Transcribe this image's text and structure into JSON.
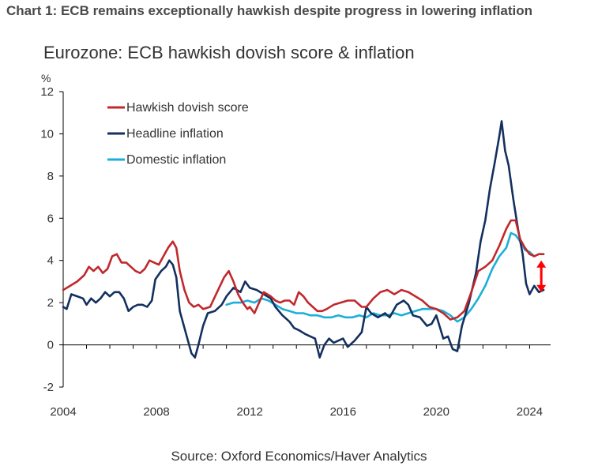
{
  "header": {
    "title": "Chart 1: ECB remains exceptionally hawkish despite progress in lowering inflation"
  },
  "source": "Source: Oxford Economics/Haver Analytics",
  "colors": {
    "hawkish": "#C0282D",
    "headline": "#13305F",
    "domestic": "#1BAFD8",
    "arrow": "#FF0000",
    "axis": "#000000",
    "text": "#333333"
  },
  "chart_data": {
    "type": "line",
    "title": "Eurozone: ECB hawkish dovish score & inflation",
    "ylabel": "%",
    "xlabel": "",
    "xlim": [
      2004,
      2024.9
    ],
    "ylim": [
      -2,
      12
    ],
    "yticks": [
      -2,
      0,
      2,
      4,
      6,
      8,
      10,
      12
    ],
    "xticks": [
      2004,
      2008,
      2012,
      2016,
      2020,
      2024
    ],
    "xtick_labels": [
      "2004",
      "2008",
      "2012",
      "2016",
      "2020",
      "2024"
    ],
    "ytick_labels": [
      "-2",
      "0",
      "2",
      "4",
      "6",
      "8",
      "10",
      "12"
    ],
    "grid": false,
    "legend_position": "top-left",
    "legend": [
      "Hawkish dovish score",
      "Headline inflation",
      "Domestic inflation"
    ],
    "annotation": {
      "type": "double-arrow",
      "description": "gap between hawkish dovish score and inflation",
      "x": 2024.5,
      "y_from": 2.5,
      "y_to": 4.0
    },
    "series": [
      {
        "name": "Hawkish dovish score",
        "color_key": "hawkish",
        "points": [
          [
            2004.0,
            2.6
          ],
          [
            2004.3,
            2.8
          ],
          [
            2004.6,
            3.0
          ],
          [
            2004.9,
            3.3
          ],
          [
            2005.1,
            3.7
          ],
          [
            2005.3,
            3.5
          ],
          [
            2005.5,
            3.7
          ],
          [
            2005.7,
            3.4
          ],
          [
            2005.9,
            3.6
          ],
          [
            2006.1,
            4.2
          ],
          [
            2006.3,
            4.3
          ],
          [
            2006.5,
            3.9
          ],
          [
            2006.7,
            3.9
          ],
          [
            2006.9,
            3.7
          ],
          [
            2007.1,
            3.5
          ],
          [
            2007.3,
            3.4
          ],
          [
            2007.5,
            3.6
          ],
          [
            2007.7,
            4.0
          ],
          [
            2007.9,
            3.9
          ],
          [
            2008.1,
            3.8
          ],
          [
            2008.3,
            4.2
          ],
          [
            2008.5,
            4.6
          ],
          [
            2008.7,
            4.9
          ],
          [
            2008.85,
            4.6
          ],
          [
            2009.0,
            3.5
          ],
          [
            2009.2,
            2.6
          ],
          [
            2009.4,
            2.0
          ],
          [
            2009.6,
            1.8
          ],
          [
            2009.8,
            1.9
          ],
          [
            2010.0,
            1.7
          ],
          [
            2010.3,
            1.8
          ],
          [
            2010.6,
            2.5
          ],
          [
            2010.9,
            3.2
          ],
          [
            2011.1,
            3.5
          ],
          [
            2011.3,
            3.0
          ],
          [
            2011.5,
            2.4
          ],
          [
            2011.7,
            2.0
          ],
          [
            2011.9,
            1.7
          ],
          [
            2012.0,
            1.8
          ],
          [
            2012.2,
            1.5
          ],
          [
            2012.4,
            2.0
          ],
          [
            2012.6,
            2.5
          ],
          [
            2012.9,
            2.3
          ],
          [
            2013.1,
            2.1
          ],
          [
            2013.3,
            2.0
          ],
          [
            2013.5,
            2.1
          ],
          [
            2013.7,
            2.1
          ],
          [
            2013.9,
            1.9
          ],
          [
            2014.1,
            2.5
          ],
          [
            2014.3,
            2.3
          ],
          [
            2014.5,
            2.0
          ],
          [
            2014.7,
            1.8
          ],
          [
            2014.9,
            1.6
          ],
          [
            2015.1,
            1.6
          ],
          [
            2015.3,
            1.7
          ],
          [
            2015.6,
            1.9
          ],
          [
            2015.9,
            2.0
          ],
          [
            2016.2,
            2.1
          ],
          [
            2016.5,
            2.1
          ],
          [
            2016.8,
            1.8
          ],
          [
            2017.0,
            1.8
          ],
          [
            2017.3,
            2.2
          ],
          [
            2017.6,
            2.5
          ],
          [
            2017.9,
            2.6
          ],
          [
            2018.2,
            2.4
          ],
          [
            2018.5,
            2.6
          ],
          [
            2018.8,
            2.5
          ],
          [
            2019.1,
            2.3
          ],
          [
            2019.4,
            2.1
          ],
          [
            2019.7,
            1.8
          ],
          [
            2020.0,
            1.7
          ],
          [
            2020.3,
            1.5
          ],
          [
            2020.6,
            1.2
          ],
          [
            2020.9,
            1.3
          ],
          [
            2021.2,
            1.6
          ],
          [
            2021.5,
            2.5
          ],
          [
            2021.8,
            3.5
          ],
          [
            2022.1,
            3.7
          ],
          [
            2022.4,
            4.0
          ],
          [
            2022.7,
            4.7
          ],
          [
            2023.0,
            5.5
          ],
          [
            2023.2,
            5.9
          ],
          [
            2023.4,
            5.9
          ],
          [
            2023.6,
            5.0
          ],
          [
            2023.8,
            4.6
          ],
          [
            2024.0,
            4.3
          ],
          [
            2024.2,
            4.2
          ],
          [
            2024.4,
            4.3
          ],
          [
            2024.6,
            4.3
          ]
        ]
      },
      {
        "name": "Headline inflation",
        "color_key": "headline",
        "points": [
          [
            2004.0,
            1.8
          ],
          [
            2004.15,
            1.7
          ],
          [
            2004.35,
            2.4
          ],
          [
            2004.6,
            2.3
          ],
          [
            2004.85,
            2.2
          ],
          [
            2005.0,
            1.9
          ],
          [
            2005.2,
            2.2
          ],
          [
            2005.4,
            2.0
          ],
          [
            2005.6,
            2.2
          ],
          [
            2005.8,
            2.5
          ],
          [
            2006.0,
            2.3
          ],
          [
            2006.2,
            2.5
          ],
          [
            2006.4,
            2.5
          ],
          [
            2006.6,
            2.2
          ],
          [
            2006.8,
            1.6
          ],
          [
            2007.0,
            1.8
          ],
          [
            2007.2,
            1.9
          ],
          [
            2007.4,
            1.9
          ],
          [
            2007.6,
            1.8
          ],
          [
            2007.8,
            2.1
          ],
          [
            2007.95,
            3.1
          ],
          [
            2008.2,
            3.5
          ],
          [
            2008.4,
            3.7
          ],
          [
            2008.55,
            4.0
          ],
          [
            2008.7,
            3.8
          ],
          [
            2008.85,
            3.2
          ],
          [
            2009.0,
            1.6
          ],
          [
            2009.2,
            0.8
          ],
          [
            2009.35,
            0.2
          ],
          [
            2009.5,
            -0.4
          ],
          [
            2009.65,
            -0.6
          ],
          [
            2009.8,
            0.0
          ],
          [
            2010.0,
            0.9
          ],
          [
            2010.2,
            1.5
          ],
          [
            2010.5,
            1.6
          ],
          [
            2010.8,
            1.9
          ],
          [
            2011.0,
            2.3
          ],
          [
            2011.3,
            2.7
          ],
          [
            2011.6,
            2.5
          ],
          [
            2011.8,
            3.0
          ],
          [
            2012.0,
            2.7
          ],
          [
            2012.3,
            2.6
          ],
          [
            2012.6,
            2.4
          ],
          [
            2012.9,
            2.2
          ],
          [
            2013.1,
            1.8
          ],
          [
            2013.4,
            1.4
          ],
          [
            2013.7,
            1.1
          ],
          [
            2013.9,
            0.8
          ],
          [
            2014.1,
            0.7
          ],
          [
            2014.4,
            0.5
          ],
          [
            2014.6,
            0.4
          ],
          [
            2014.8,
            0.3
          ],
          [
            2015.0,
            -0.6
          ],
          [
            2015.2,
            0.0
          ],
          [
            2015.4,
            0.3
          ],
          [
            2015.6,
            0.1
          ],
          [
            2015.8,
            0.2
          ],
          [
            2016.0,
            0.3
          ],
          [
            2016.2,
            -0.1
          ],
          [
            2016.5,
            0.2
          ],
          [
            2016.8,
            0.6
          ],
          [
            2017.0,
            1.8
          ],
          [
            2017.2,
            1.5
          ],
          [
            2017.5,
            1.3
          ],
          [
            2017.8,
            1.5
          ],
          [
            2018.0,
            1.3
          ],
          [
            2018.3,
            1.9
          ],
          [
            2018.6,
            2.1
          ],
          [
            2018.8,
            1.9
          ],
          [
            2019.0,
            1.4
          ],
          [
            2019.3,
            1.3
          ],
          [
            2019.6,
            0.9
          ],
          [
            2019.8,
            1.0
          ],
          [
            2020.0,
            1.4
          ],
          [
            2020.3,
            0.3
          ],
          [
            2020.5,
            0.4
          ],
          [
            2020.7,
            -0.2
          ],
          [
            2020.9,
            -0.3
          ],
          [
            2021.1,
            0.9
          ],
          [
            2021.4,
            2.0
          ],
          [
            2021.7,
            3.4
          ],
          [
            2021.9,
            4.9
          ],
          [
            2022.1,
            5.9
          ],
          [
            2022.3,
            7.4
          ],
          [
            2022.5,
            8.6
          ],
          [
            2022.7,
            9.9
          ],
          [
            2022.8,
            10.6
          ],
          [
            2022.95,
            9.2
          ],
          [
            2023.1,
            8.5
          ],
          [
            2023.3,
            6.9
          ],
          [
            2023.5,
            5.5
          ],
          [
            2023.7,
            4.3
          ],
          [
            2023.85,
            2.9
          ],
          [
            2024.0,
            2.4
          ],
          [
            2024.2,
            2.8
          ],
          [
            2024.4,
            2.5
          ],
          [
            2024.6,
            2.6
          ]
        ]
      },
      {
        "name": "Domestic inflation",
        "color_key": "domestic",
        "points": [
          [
            2011.0,
            1.9
          ],
          [
            2011.3,
            2.0
          ],
          [
            2011.6,
            2.0
          ],
          [
            2011.9,
            2.1
          ],
          [
            2012.2,
            2.0
          ],
          [
            2012.5,
            2.2
          ],
          [
            2012.8,
            2.1
          ],
          [
            2013.1,
            1.9
          ],
          [
            2013.4,
            1.7
          ],
          [
            2013.7,
            1.6
          ],
          [
            2014.0,
            1.5
          ],
          [
            2014.3,
            1.5
          ],
          [
            2014.6,
            1.4
          ],
          [
            2014.9,
            1.4
          ],
          [
            2015.2,
            1.3
          ],
          [
            2015.5,
            1.3
          ],
          [
            2015.8,
            1.4
          ],
          [
            2016.1,
            1.3
          ],
          [
            2016.4,
            1.3
          ],
          [
            2016.7,
            1.4
          ],
          [
            2017.0,
            1.3
          ],
          [
            2017.3,
            1.5
          ],
          [
            2017.6,
            1.4
          ],
          [
            2017.9,
            1.4
          ],
          [
            2018.2,
            1.5
          ],
          [
            2018.5,
            1.4
          ],
          [
            2018.8,
            1.5
          ],
          [
            2019.1,
            1.6
          ],
          [
            2019.4,
            1.7
          ],
          [
            2019.7,
            1.7
          ],
          [
            2020.0,
            1.7
          ],
          [
            2020.3,
            1.6
          ],
          [
            2020.6,
            1.4
          ],
          [
            2020.9,
            1.1
          ],
          [
            2021.2,
            1.3
          ],
          [
            2021.5,
            1.7
          ],
          [
            2021.8,
            2.2
          ],
          [
            2022.1,
            2.8
          ],
          [
            2022.4,
            3.6
          ],
          [
            2022.7,
            4.2
          ],
          [
            2023.0,
            4.6
          ],
          [
            2023.2,
            5.3
          ],
          [
            2023.4,
            5.2
          ],
          [
            2023.6,
            4.9
          ],
          [
            2023.8,
            4.5
          ],
          [
            2024.0,
            4.4
          ],
          [
            2024.2,
            4.2
          ]
        ]
      }
    ]
  }
}
